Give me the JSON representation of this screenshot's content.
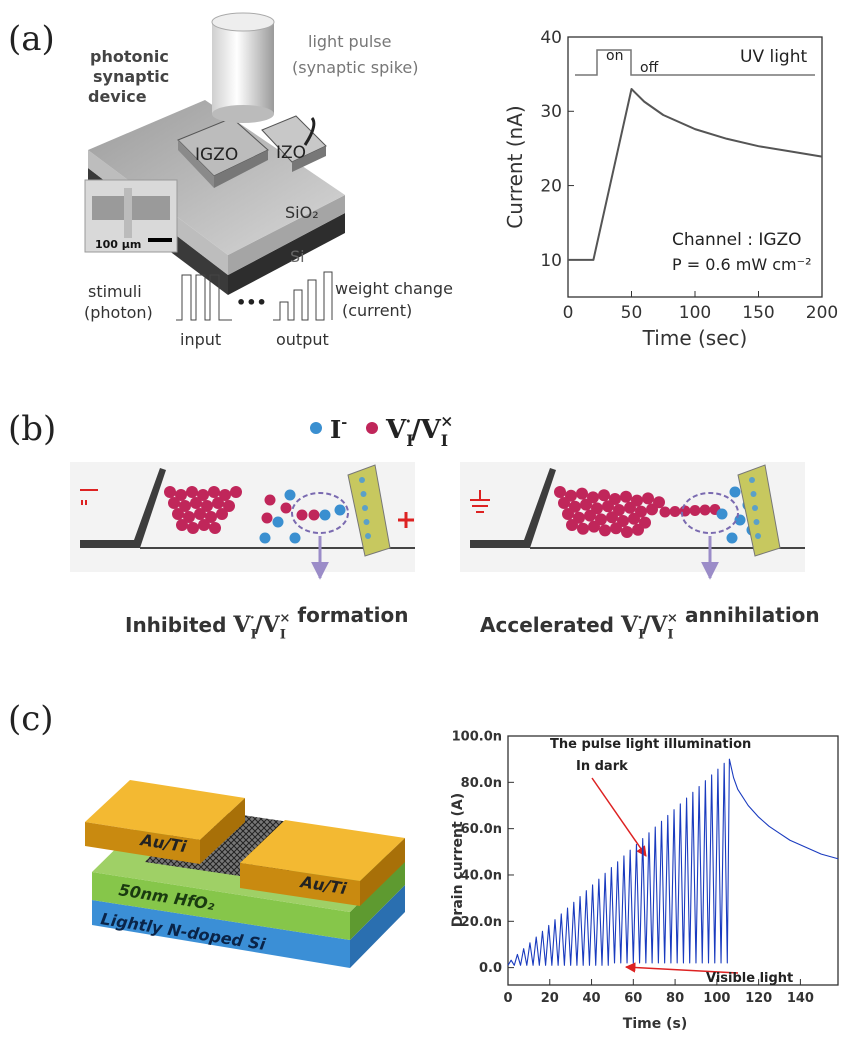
{
  "panels": {
    "a": {
      "label": "(a)",
      "device_label": [
        "photonic",
        "synaptic",
        "device"
      ],
      "pulse_label": [
        "light pulse",
        "(synaptic spike)"
      ],
      "layers": {
        "channel": "IGZO",
        "electrode": "IZO",
        "oxide": "SiO₂",
        "substrate": "Si"
      },
      "scale_bar": "100 μm",
      "stimuli": [
        "stimuli",
        "(photon)"
      ],
      "weight": [
        "weight change",
        "(current)"
      ],
      "ellipsis": "•••",
      "input": "input",
      "output": "output"
    },
    "b": {
      "label": "(b)",
      "ion": [
        "I",
        "-"
      ],
      "vacancy": [
        "V",
        "I",
        "·",
        "/",
        "V",
        "I",
        "×"
      ],
      "captions": [
        {
          "before": "Inhibited",
          "after": "formation"
        },
        {
          "before": "Accelerated",
          "after": "annihilation"
        }
      ]
    },
    "c": {
      "label": "(c)",
      "layers": {
        "contact_left": "Au/Ti",
        "contact_right": "Au/Ti",
        "dielectric": "50nm HfO₂",
        "substrate": "Lightly N-doped Si"
      }
    }
  },
  "chart_data": [
    {
      "type": "line",
      "xlabel": "Time (sec)",
      "ylabel": "Current (nA)",
      "annotations": [
        "on",
        "off",
        "UV light",
        "Channel : IGZO",
        "P = 0.6 mW cm⁻²"
      ],
      "x": [
        0,
        20,
        50,
        60,
        75,
        100,
        125,
        150,
        175,
        200
      ],
      "series": [
        {
          "color": "#555555",
          "values": [
            10,
            10,
            33,
            31.3,
            29.5,
            27.6,
            26.3,
            25.3,
            24.6,
            23.9
          ]
        }
      ],
      "xlim": [
        0,
        200
      ],
      "ylim": [
        5,
        40
      ],
      "xticks": [
        0,
        50,
        100,
        150,
        200
      ],
      "yticks": [
        10,
        20,
        30,
        40
      ]
    },
    {
      "type": "line",
      "xlabel": "Time (s)",
      "ylabel": "Drain current (A)",
      "annotations": [
        "The pulse light illumination",
        "In dark",
        "Visible light"
      ],
      "x": [
        0,
        1.5,
        3,
        4.5,
        6,
        7.5,
        9,
        10.5,
        12,
        13.5,
        15,
        16.5,
        18,
        19.5,
        21,
        22.5,
        24,
        25.5,
        27,
        28.5,
        30,
        31.5,
        33,
        34.5,
        36,
        37.5,
        39,
        40.5,
        42,
        43.5,
        45,
        46.5,
        48,
        49.5,
        51,
        52.5,
        54,
        55.5,
        57,
        58.5,
        60,
        61.5,
        63,
        64.5,
        66,
        67.5,
        69,
        70.5,
        72,
        73.5,
        75,
        76.5,
        78,
        79.5,
        81,
        82.5,
        84,
        85.5,
        87,
        88.5,
        90,
        91.5,
        93,
        94.5,
        96,
        97.5,
        99,
        100.5,
        102,
        103.5,
        105,
        106,
        108,
        110,
        115,
        120,
        125,
        130,
        135,
        140,
        145,
        150,
        158
      ],
      "series": [
        {
          "color": "#1a3bbf",
          "values": [
            1e-09,
            3.2e-09,
            1e-09,
            5.7e-09,
            1e-09,
            8.2e-09,
            1e-09,
            1.07e-08,
            1e-09,
            1.32e-08,
            1e-09,
            1.57e-08,
            1e-09,
            1.82e-08,
            1e-09,
            2.07e-08,
            1e-09,
            2.32e-08,
            1e-09,
            2.57e-08,
            1e-09,
            2.82e-08,
            1e-09,
            3.07e-08,
            1e-09,
            3.32e-08,
            1e-09,
            3.57e-08,
            1e-09,
            3.82e-08,
            1e-09,
            4.07e-08,
            1e-09,
            4.32e-08,
            2e-09,
            4.57e-08,
            2e-09,
            4.82e-08,
            2e-09,
            5.07e-08,
            2e-09,
            5.32e-08,
            2e-09,
            5.57e-08,
            2e-09,
            5.82e-08,
            2e-09,
            6.07e-08,
            2e-09,
            6.32e-08,
            2e-09,
            6.57e-08,
            2e-09,
            6.82e-08,
            2e-09,
            7.07e-08,
            2e-09,
            7.32e-08,
            2e-09,
            7.57e-08,
            2e-09,
            7.82e-08,
            2e-09,
            8.07e-08,
            2e-09,
            8.32e-08,
            2e-09,
            8.57e-08,
            2e-09,
            8.82e-08,
            2e-09,
            9e-08,
            8.2e-08,
            7.7e-08,
            7e-08,
            6.5e-08,
            6.1e-08,
            5.8e-08,
            5.5e-08,
            5.3e-08,
            5.1e-08,
            4.9e-08,
            4.7e-08
          ]
        }
      ],
      "xlim": [
        0,
        158
      ],
      "ylim": [
        -7.5e-09,
        1e-07
      ],
      "xticks": [
        0,
        20,
        40,
        60,
        80,
        100,
        120,
        140
      ],
      "yticks": [
        {
          "value": 0,
          "label": "0.0"
        },
        {
          "value": 2e-08,
          "label": "20.0n"
        },
        {
          "value": 4e-08,
          "label": "40.0n"
        },
        {
          "value": 6e-08,
          "label": "60.0n"
        },
        {
          "value": 8e-08,
          "label": "80.0n"
        },
        {
          "value": 1e-07,
          "label": "100.0n"
        }
      ]
    }
  ]
}
